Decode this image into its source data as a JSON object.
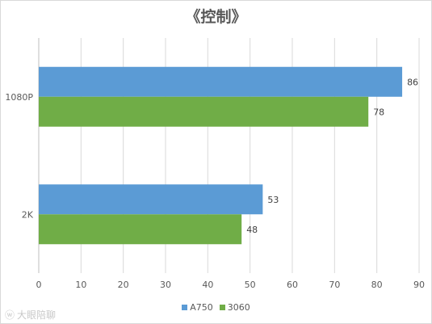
{
  "chart_data": {
    "type": "bar",
    "orientation": "horizontal",
    "title": "《控制》",
    "categories": [
      "1080P",
      "2K"
    ],
    "series": [
      {
        "name": "A750",
        "color": "#5b9bd5",
        "values": [
          86,
          53
        ]
      },
      {
        "name": "3060",
        "color": "#70ad47",
        "values": [
          78,
          48
        ]
      }
    ],
    "xlim": [
      0,
      90
    ],
    "xticks": [
      0,
      10,
      20,
      30,
      40,
      50,
      60,
      70,
      80,
      90
    ],
    "grid": true,
    "legend": "bottom"
  },
  "watermark": {
    "text": "大眼陪聊"
  }
}
